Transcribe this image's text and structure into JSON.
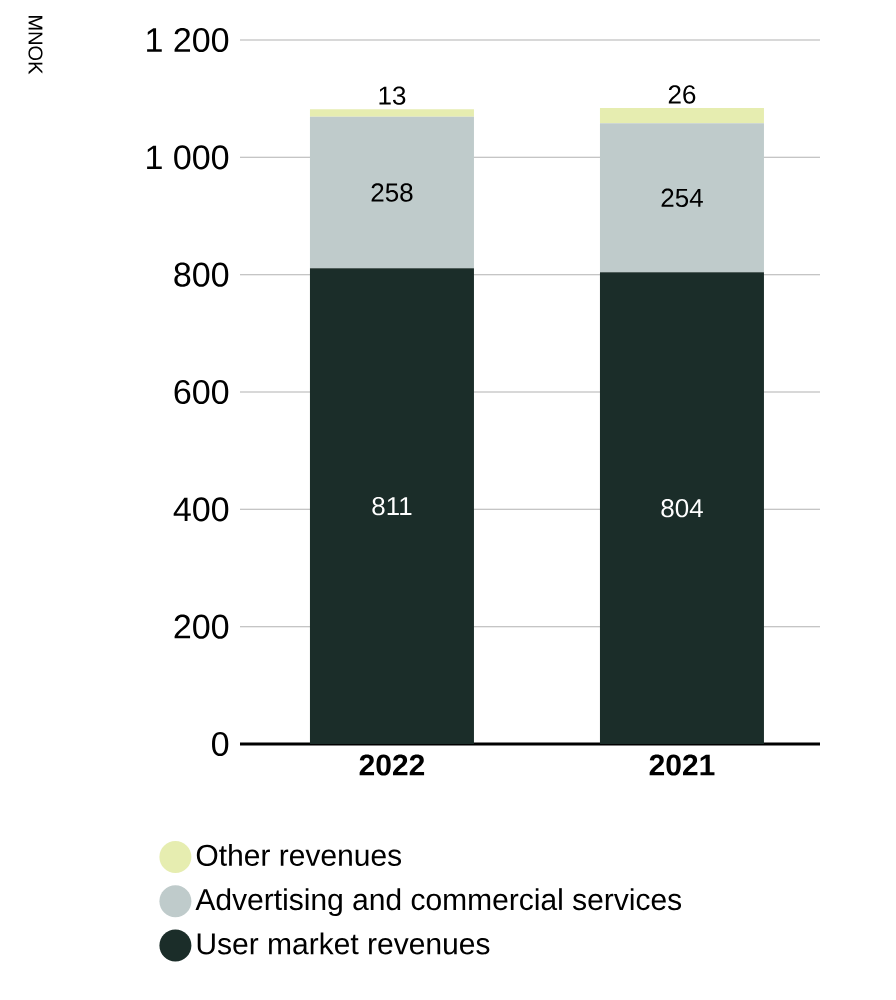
{
  "chart_data": {
    "type": "bar",
    "stacked": true,
    "annotations": [
      "MNOK"
    ],
    "categories": [
      "2022",
      "2021"
    ],
    "series": [
      {
        "name": "User market revenues",
        "color": "#1b2d29",
        "values": [
          811,
          804
        ]
      },
      {
        "name": "Advertising and commercial services",
        "color": "#bfcbcb",
        "values": [
          258,
          254
        ]
      },
      {
        "name": "Other revenues",
        "color": "#e6edb0",
        "values": [
          13,
          26
        ]
      }
    ],
    "ylim": [
      0,
      1200
    ],
    "yticks": [
      0,
      200,
      400,
      600,
      800,
      {
        "value": 1000,
        "label": "1 000"
      },
      {
        "value": 1200,
        "label": "1 200"
      }
    ],
    "grid": "y",
    "legend": "bottom",
    "data_labels": true
  }
}
